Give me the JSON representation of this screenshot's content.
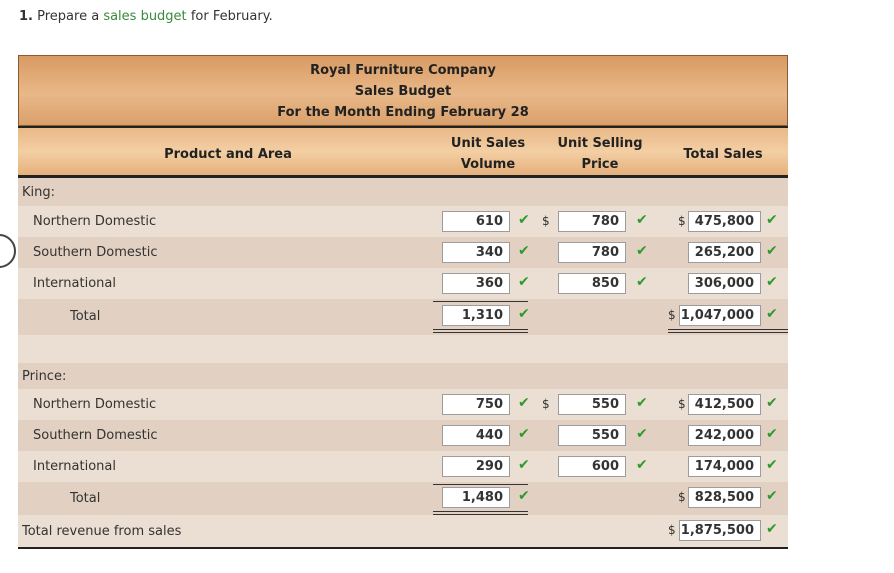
{
  "prompt": {
    "number": "1.",
    "pre": "Prepare a",
    "link": "sales budget",
    "post": "for February."
  },
  "header": {
    "company": "Royal Furniture Company",
    "title": "Sales Budget",
    "period": "For the Month Ending February 28"
  },
  "columns": {
    "product": "Product and Area",
    "volume_1": "Unit Sales",
    "volume_2": "Volume",
    "price_1": "Unit Selling",
    "price_2": "Price",
    "total": "Total Sales"
  },
  "currency": "$",
  "check": "✔",
  "king": {
    "label": "King:",
    "rows": [
      {
        "area": "Northern Domestic",
        "volume": "610",
        "price": "780",
        "total": "475,800"
      },
      {
        "area": "Southern Domestic",
        "volume": "340",
        "price": "780",
        "total": "265,200"
      },
      {
        "area": "International",
        "volume": "360",
        "price": "850",
        "total": "306,000"
      }
    ],
    "total_label": "Total",
    "total_volume": "1,310",
    "total_sales": "1,047,000"
  },
  "prince": {
    "label": "Prince:",
    "rows": [
      {
        "area": "Northern Domestic",
        "volume": "750",
        "price": "550",
        "total": "412,500"
      },
      {
        "area": "Southern Domestic",
        "volume": "440",
        "price": "550",
        "total": "242,000"
      },
      {
        "area": "International",
        "volume": "290",
        "price": "600",
        "total": "174,000"
      }
    ],
    "total_label": "Total",
    "total_volume": "1,480",
    "total_sales": "828,500"
  },
  "grand": {
    "label": "Total revenue from sales",
    "total_sales": "1,875,500"
  }
}
